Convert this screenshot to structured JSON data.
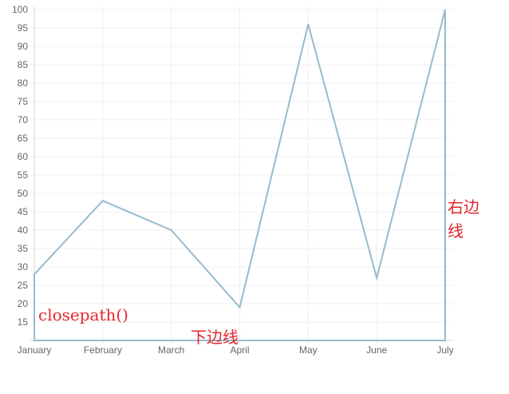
{
  "chart_data": {
    "type": "line",
    "categories": [
      "January",
      "February",
      "March",
      "April",
      "May",
      "June",
      "July"
    ],
    "series": [
      {
        "values": [
          28,
          48,
          40,
          19,
          96,
          27,
          100
        ]
      }
    ],
    "title": "",
    "xlabel": "",
    "ylabel": "",
    "ylim": [
      10,
      100
    ],
    "yticks": [
      15,
      20,
      25,
      30,
      35,
      40,
      45,
      50,
      55,
      60,
      65,
      70,
      75,
      80,
      85,
      90,
      95,
      100
    ],
    "closed_path": true,
    "grid": true,
    "legend": "none",
    "colors": {
      "line": "#97bbcd",
      "grid": "#f0f0f0",
      "axis": "#d9d9d9",
      "tick_text": "#666666",
      "annotation": "#e3262b"
    },
    "annotations": {
      "closepath": "closepath()",
      "bottom_edge": "下边线",
      "right_edge": "右边线"
    }
  }
}
